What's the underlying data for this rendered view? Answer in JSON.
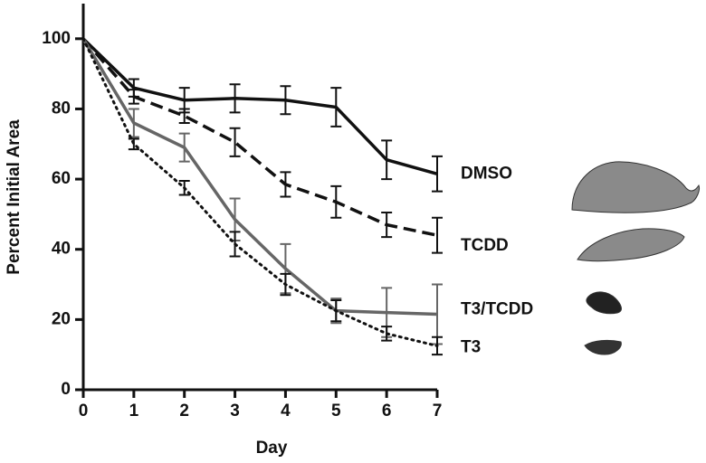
{
  "chart_data": {
    "type": "line",
    "x": [
      0,
      1,
      2,
      3,
      4,
      5,
      6,
      7
    ],
    "xlabel": "Day",
    "ylabel": "Percent Initial Area",
    "xlim": [
      0,
      7
    ],
    "xticks": [
      0,
      1,
      2,
      3,
      4,
      5,
      6,
      7
    ],
    "ylim": [
      0,
      110
    ],
    "yticks": [
      0,
      20,
      40,
      60,
      80,
      100
    ],
    "series": [
      {
        "name": "DMSO",
        "color": "#111111",
        "dash": "solid",
        "values": [
          100,
          86,
          82.5,
          83,
          82.5,
          80.5,
          65.5,
          61.5
        ],
        "errors": [
          null,
          2.5,
          3.5,
          4,
          4,
          5.5,
          5.5,
          5
        ]
      },
      {
        "name": "TCDD",
        "color": "#111111",
        "dash": "dashed",
        "values": [
          100,
          83.5,
          78,
          70.5,
          58.5,
          53.5,
          47,
          44
        ],
        "errors": [
          null,
          2,
          2,
          4,
          3.5,
          4.5,
          3.5,
          5
        ]
      },
      {
        "name": "T3/TCDD",
        "color": "#666666",
        "dash": "solid",
        "values": [
          100,
          76,
          69,
          48.5,
          34.5,
          22.5,
          22,
          21.5
        ],
        "errors": [
          null,
          4,
          4,
          6,
          7,
          3.5,
          7,
          8.5
        ]
      },
      {
        "name": "T3",
        "color": "#111111",
        "dash": "dotted",
        "values": [
          100,
          70,
          57.5,
          41.5,
          30,
          22.5,
          16,
          12.5
        ],
        "errors": [
          null,
          1.5,
          2,
          3.5,
          3,
          3,
          2,
          2.5
        ]
      }
    ]
  }
}
